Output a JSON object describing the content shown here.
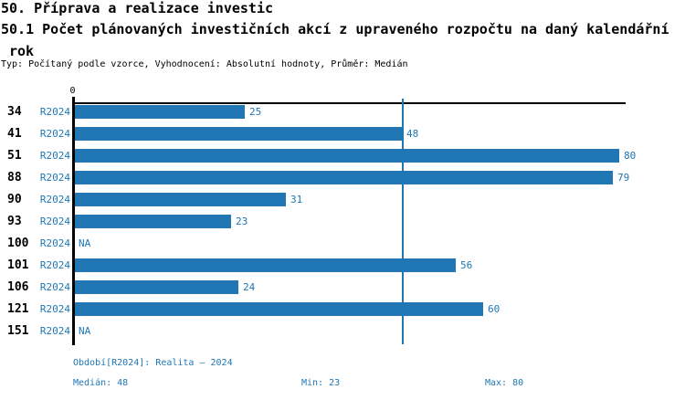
{
  "header": {
    "title": "50. Příprava a realizace investic",
    "subtitle": "50.1 Počet plánovaných investičních akcí z upraveného rozpočtu na daný kalendářní rok",
    "meta": "Typ: Počítaný podle vzorce, Vyhodnocení: Absolutní hodnoty, Průměr: Medián"
  },
  "chart_data": {
    "type": "bar",
    "orientation": "horizontal",
    "title": "50.1 Počet plánovaných investičních akcí z upraveného rozpočtu na daný kalendářní rok",
    "categories": [
      "34",
      "41",
      "51",
      "88",
      "90",
      "93",
      "100",
      "101",
      "106",
      "121",
      "151"
    ],
    "series": [
      {
        "name": "R2024",
        "values": [
          25,
          48,
          80,
          79,
          31,
          23,
          null,
          56,
          24,
          60,
          null
        ]
      }
    ],
    "value_labels": [
      "25",
      "48",
      "80",
      "79",
      "31",
      "23",
      "NA",
      "56",
      "24",
      "60",
      "NA"
    ],
    "na_label": "NA",
    "x_axis": {
      "position": "top",
      "range": [
        0,
        81
      ],
      "tick_labels": [
        "0"
      ]
    },
    "reference_line": {
      "value": 48,
      "meaning": "median"
    },
    "grid": false,
    "legend": "none",
    "bar_color": "#2077b4",
    "accent_text_color": "#1f77b4",
    "axis_color": "#000000"
  },
  "footer": {
    "period_label": "Období[R2024]: Realita – 2024",
    "median_label": "Medián: 48",
    "min_label": "Min: 23",
    "max_label": "Max: 80"
  }
}
